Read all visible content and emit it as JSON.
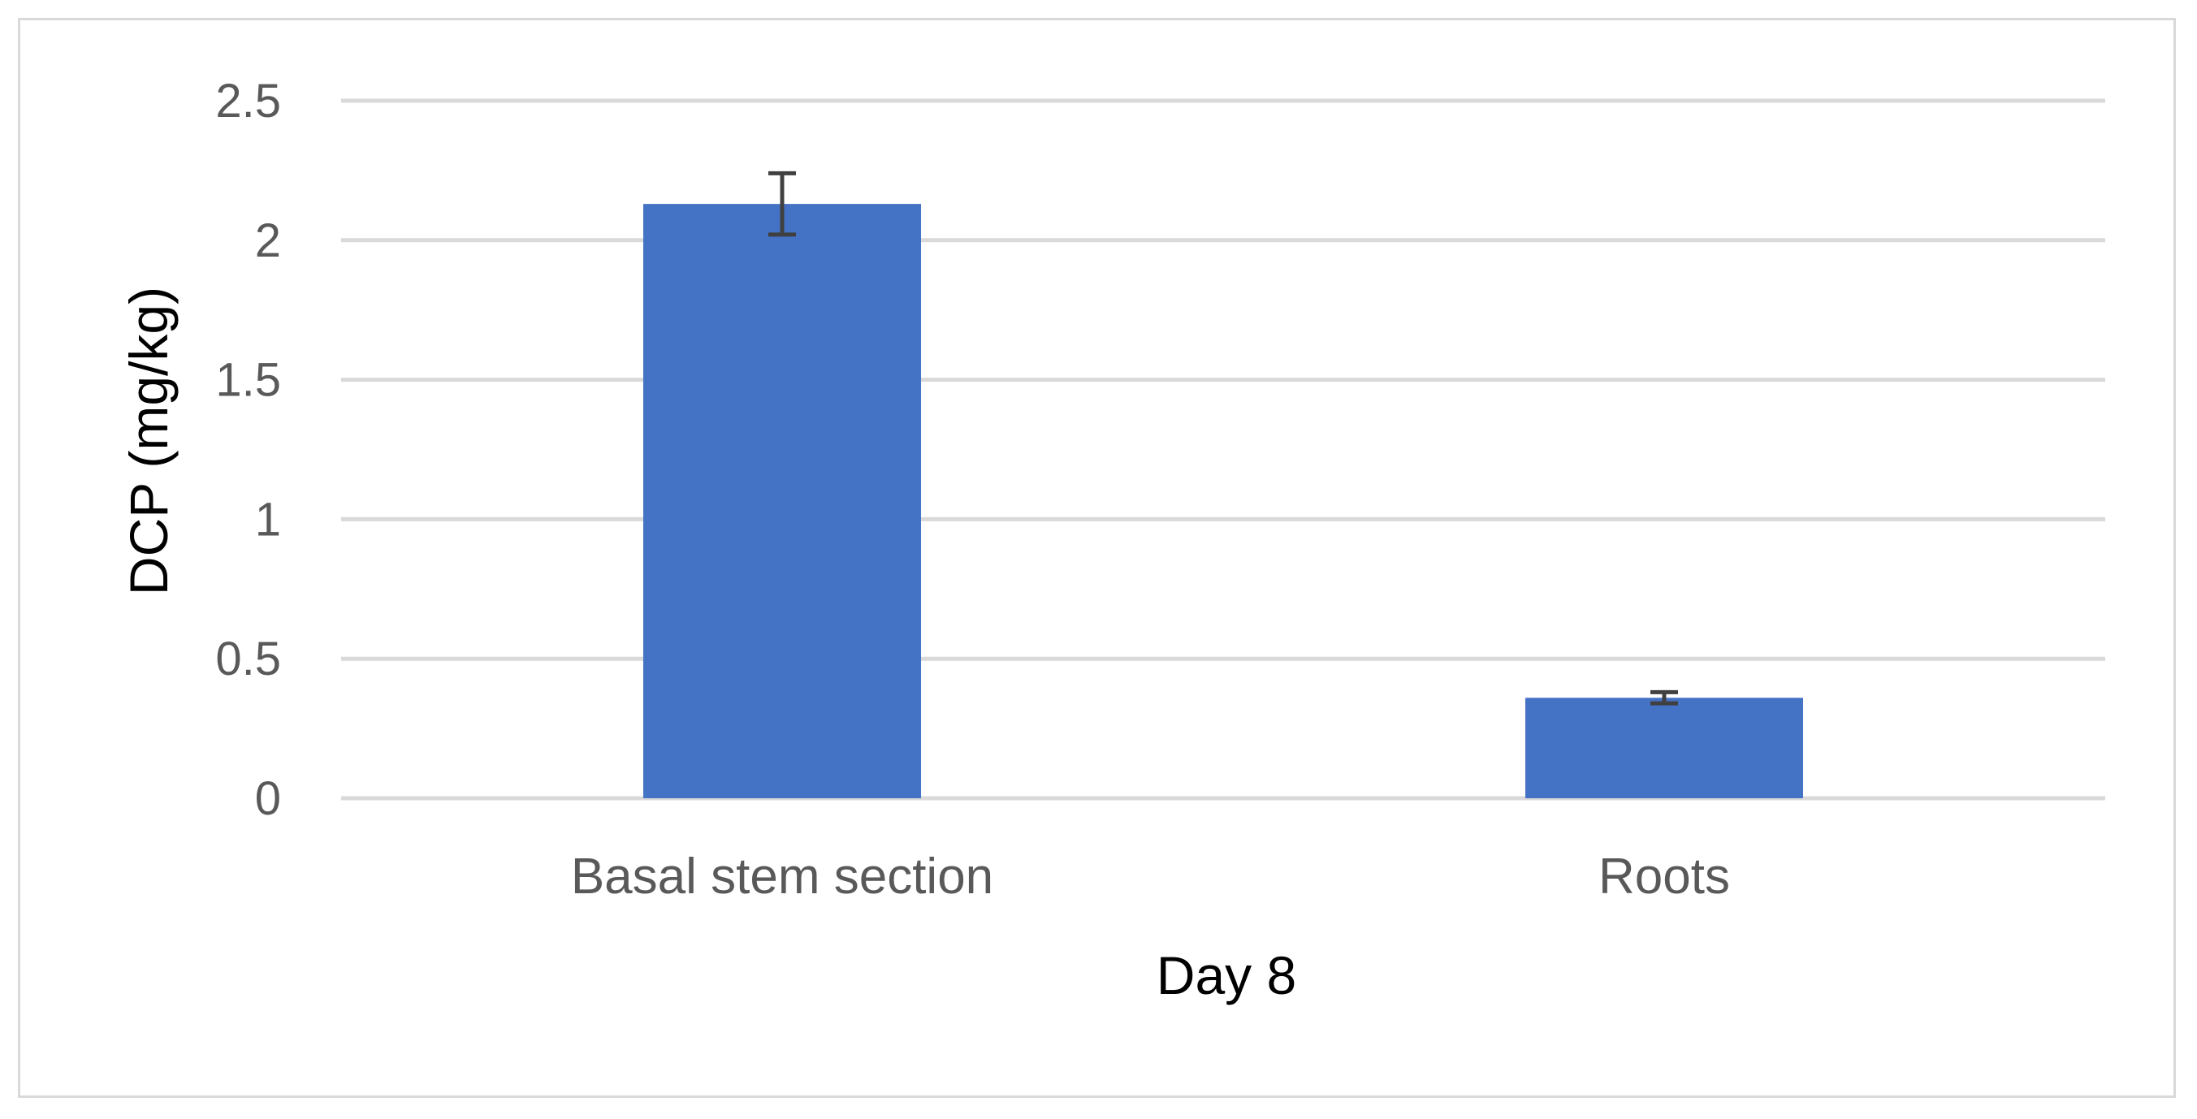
{
  "chart_data": {
    "type": "bar",
    "categories": [
      "Basal stem section",
      "Roots"
    ],
    "values": [
      2.13,
      0.36
    ],
    "error_bars": [
      0.11,
      0.02
    ],
    "title": "",
    "xlabel": "Day 8",
    "ylabel": "DCP (mg/kg)",
    "ylim": [
      0,
      2.5
    ],
    "yticks": [
      0,
      0.5,
      1,
      1.5,
      2,
      2.5
    ],
    "ytick_labels": [
      "0",
      "0.5",
      "1",
      "1.5",
      "2",
      "2.5"
    ],
    "grid": true,
    "legend": "none",
    "colors": {
      "bar": "#4472C4",
      "grid": "#d9d9d9",
      "error_bar": "#404040",
      "tick_text": "#595959",
      "axis_title": "#000000"
    }
  }
}
